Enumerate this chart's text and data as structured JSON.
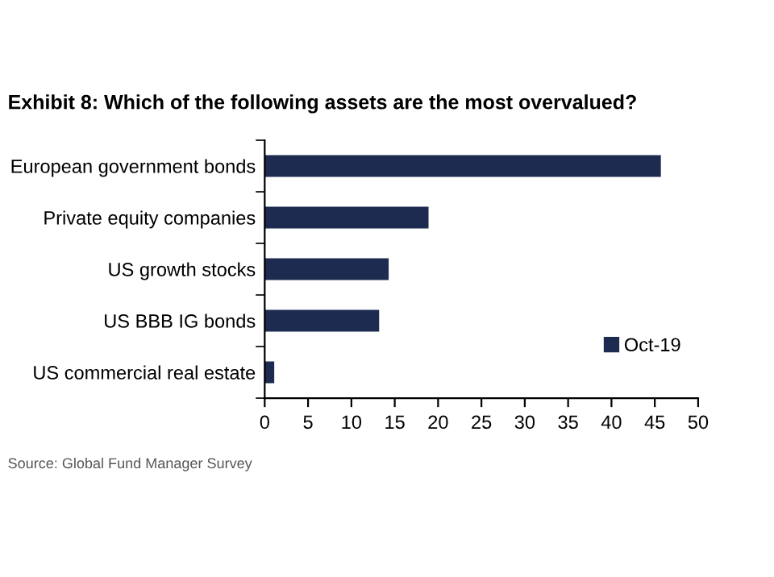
{
  "chart_data": {
    "type": "bar",
    "orientation": "horizontal",
    "title": "Exhibit 8: Which of the following assets are the most overvalued?",
    "categories": [
      "European government bonds",
      "Private equity companies",
      "US growth stocks",
      "US BBB IG bonds",
      "US commercial real estate"
    ],
    "series": [
      {
        "name": "Oct-19",
        "color": "#1c2b4f",
        "values": [
          45.7,
          18.9,
          14.3,
          13.2,
          1.1
        ]
      }
    ],
    "xlim": [
      0,
      50
    ],
    "xticks": [
      0,
      5,
      10,
      15,
      20,
      25,
      30,
      35,
      40,
      45,
      50
    ],
    "grid": false,
    "legend": "bottom right",
    "annotations": [
      "Source: Global Fund Manager Survey"
    ]
  }
}
